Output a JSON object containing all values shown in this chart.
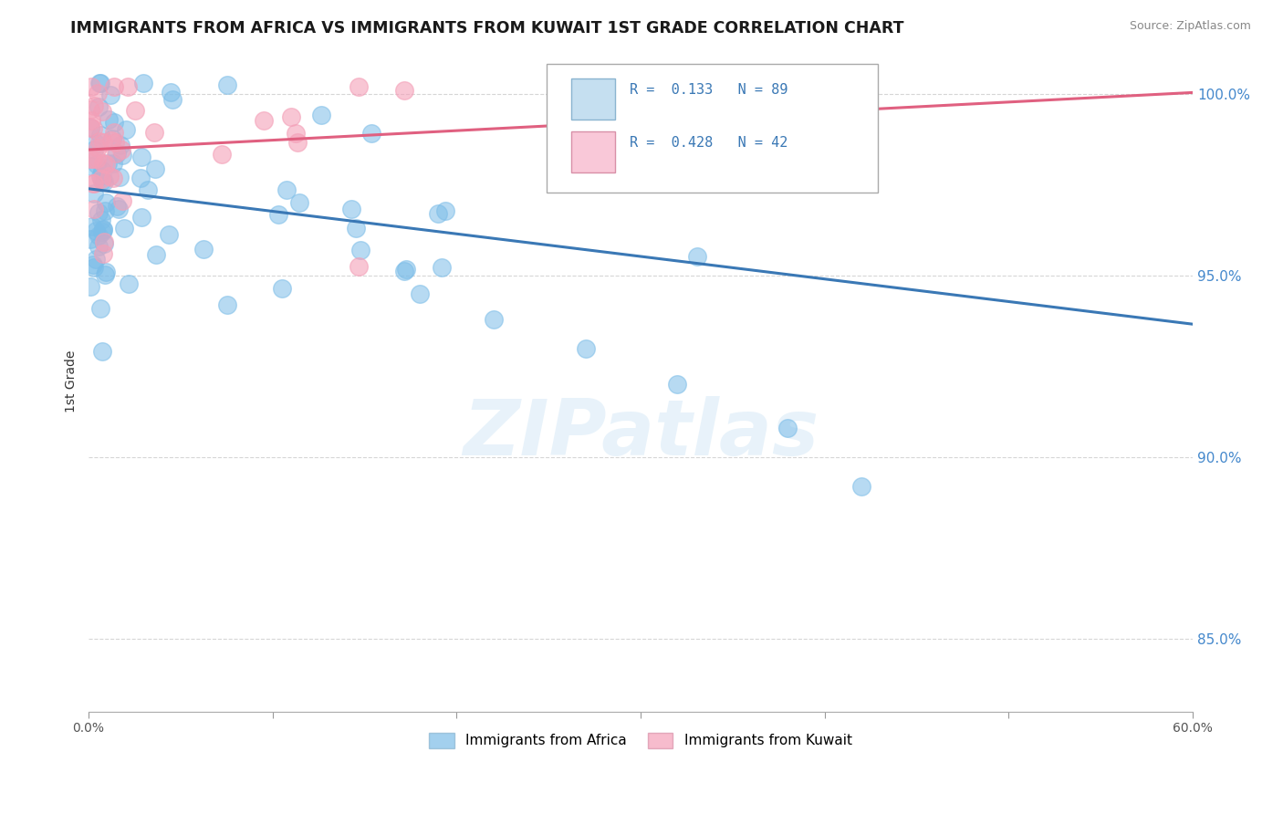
{
  "title": "IMMIGRANTS FROM AFRICA VS IMMIGRANTS FROM KUWAIT 1ST GRADE CORRELATION CHART",
  "source": "Source: ZipAtlas.com",
  "xlabel_africa": "Immigrants from Africa",
  "xlabel_kuwait": "Immigrants from Kuwait",
  "ylabel": "1st Grade",
  "xlim": [
    0.0,
    0.6
  ],
  "ylim": [
    0.83,
    1.012
  ],
  "xtick_positions": [
    0.0,
    0.1,
    0.2,
    0.3,
    0.4,
    0.5,
    0.6
  ],
  "xtick_labels": [
    "0.0%",
    "",
    "",
    "",
    "",
    "",
    "60.0%"
  ],
  "ytick_positions": [
    0.85,
    0.9,
    0.95,
    1.0
  ],
  "ytick_labels": [
    "85.0%",
    "90.0%",
    "95.0%",
    "100.0%"
  ],
  "r_africa": 0.133,
  "n_africa": 89,
  "r_kuwait": 0.428,
  "n_kuwait": 42,
  "color_africa": "#7cbde8",
  "color_kuwait": "#f4a0b8",
  "trendline_africa": "#3a78b5",
  "trendline_kuwait": "#e06080",
  "legend_r1": "R =  0.133   N = 89",
  "legend_r2": "R =  0.428   N = 42",
  "legend_color_text": "#3a78b5",
  "legend_box_africa": "#c5dff0",
  "legend_box_kuwait": "#f9c8d8",
  "watermark": "ZIPatlas",
  "watermark_color": "#cce4f5"
}
